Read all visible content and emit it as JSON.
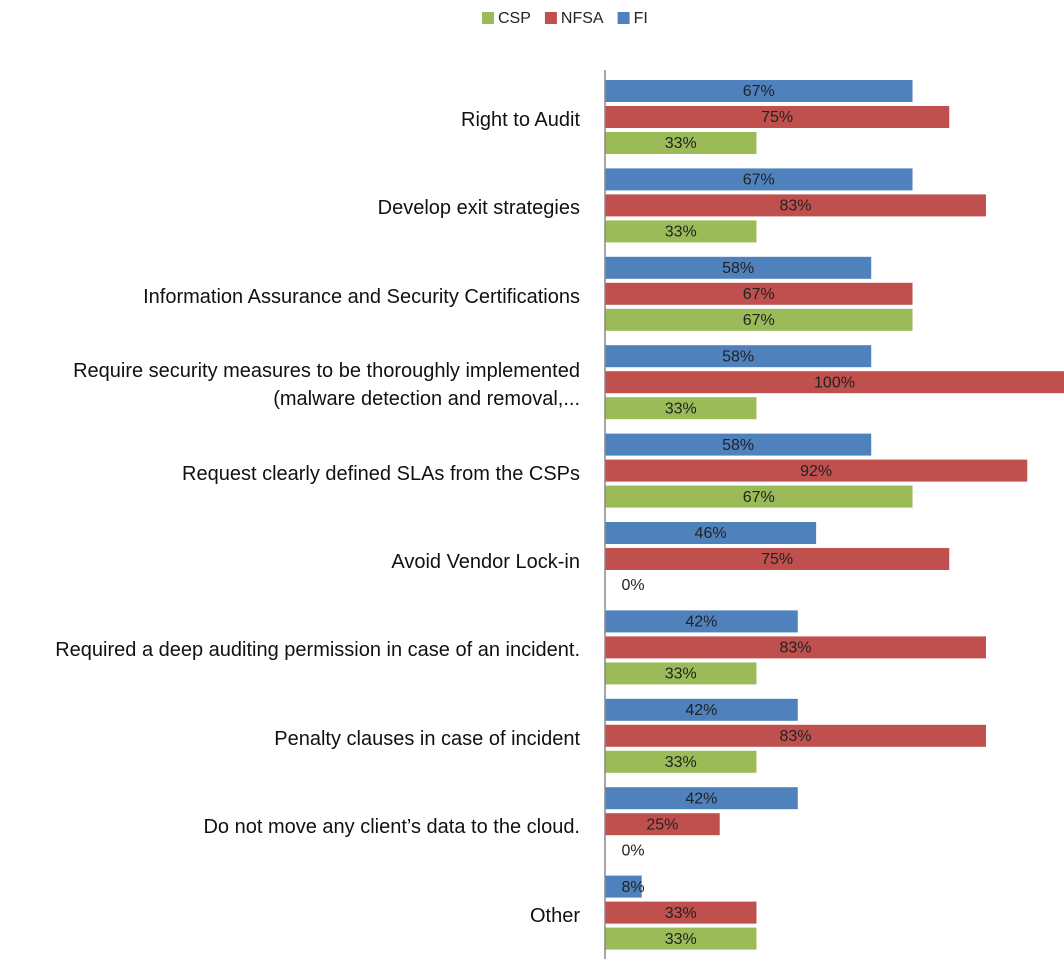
{
  "chart_data": {
    "type": "bar",
    "orientation": "horizontal",
    "categories": [
      "Right to Audit",
      "Develop exit strategies",
      "Information Assurance and Security Certifications",
      "Require security measures to be thoroughly implemented (malware detection and removal,...",
      "Request clearly defined SLAs from the CSPs",
      "Avoid Vendor Lock-in",
      "Required a deep auditing permission in case of an incident.",
      "Penalty clauses in case of incident",
      "Do not move any client’s data to the cloud.",
      "Other"
    ],
    "series": [
      {
        "name": "FI",
        "color": "#4f81bd",
        "values": [
          67,
          67,
          58,
          58,
          58,
          46,
          42,
          42,
          42,
          8
        ],
        "value_labels": [
          "67%",
          "67%",
          "58%",
          "58%",
          "58%",
          "46%",
          "42%",
          "42%",
          "42%",
          "8%"
        ]
      },
      {
        "name": "NFSA",
        "color": "#c0504d",
        "values": [
          75,
          83,
          67,
          100,
          92,
          75,
          83,
          83,
          25,
          33
        ],
        "value_labels": [
          "75%",
          "83%",
          "67%",
          "100%",
          "92%",
          "75%",
          "83%",
          "83%",
          "25%",
          "33%"
        ]
      },
      {
        "name": "CSP",
        "color": "#9bbb59",
        "values": [
          33,
          33,
          67,
          33,
          67,
          0,
          33,
          33,
          0,
          33
        ],
        "value_labels": [
          "33%",
          "33%",
          "67%",
          "33%",
          "67%",
          "0%",
          "33%",
          "33%",
          "0%",
          "33%"
        ]
      }
    ],
    "legend_order": [
      "CSP",
      "NFSA",
      "FI"
    ],
    "xlim": [
      0,
      100
    ]
  }
}
